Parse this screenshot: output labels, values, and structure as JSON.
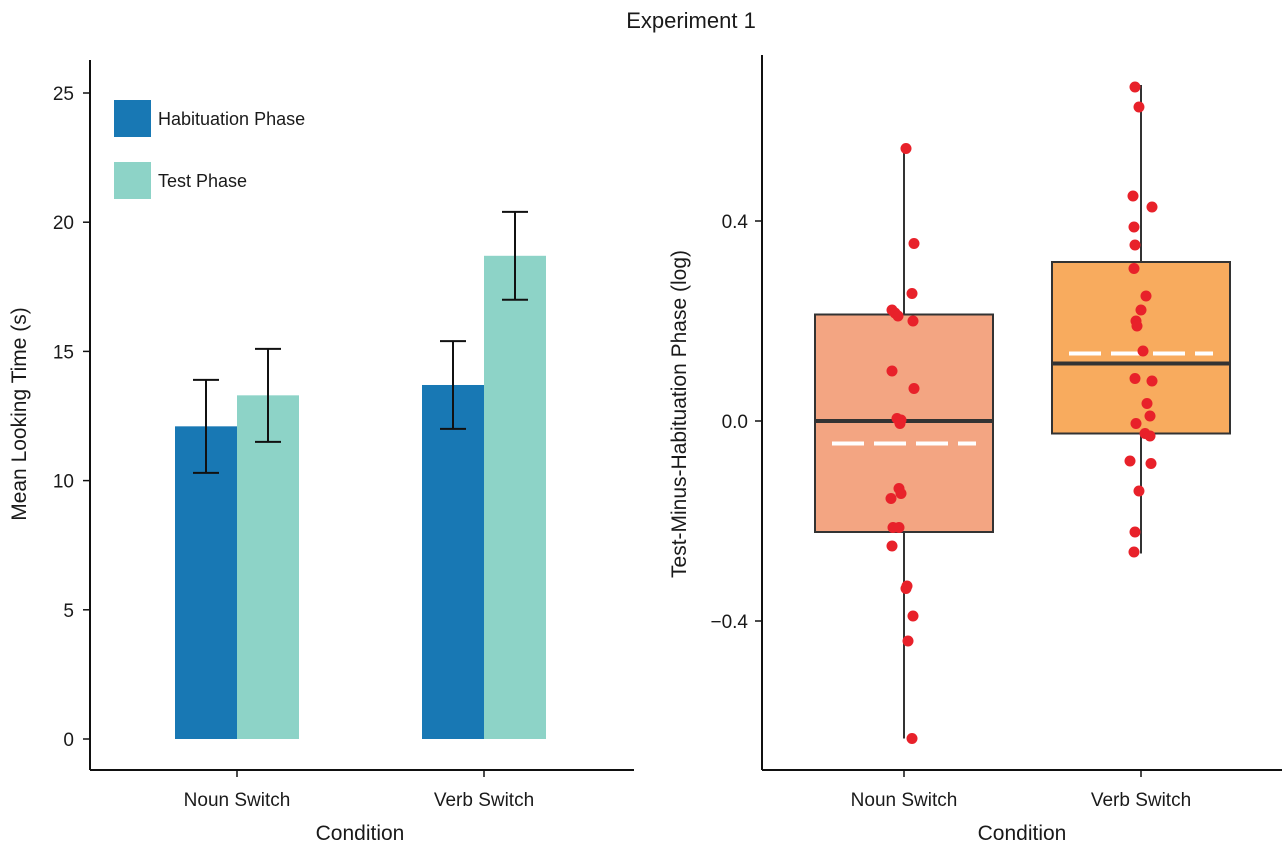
{
  "figure_title": "Experiment 1",
  "chart_data": [
    {
      "type": "bar",
      "title": "",
      "xlabel": "Condition",
      "ylabel": "Mean Looking Time (s)",
      "ylim": [
        0,
        25
      ],
      "yticks": [
        "0",
        "5",
        "10",
        "15",
        "20",
        "25"
      ],
      "categories": [
        "Noun Switch",
        "Verb Switch"
      ],
      "series": [
        {
          "name": "Habituation Phase",
          "color": "#1878b4",
          "values": [
            12.1,
            13.7
          ],
          "error": [
            1.8,
            1.7
          ]
        },
        {
          "name": "Test Phase",
          "color": "#8dd3c7",
          "values": [
            13.3,
            18.7
          ],
          "error": [
            1.8,
            1.7
          ]
        }
      ],
      "legend_position": "top-left",
      "grid": false,
      "error_bars": true
    },
    {
      "type": "box",
      "title": "",
      "xlabel": "Condition",
      "ylabel": "Test-Minus-Habituation Phase (log)",
      "ylim": [
        -0.7,
        0.73
      ],
      "yticks": [
        "0.4",
        "0.0",
        "−0.4"
      ],
      "ytick_values": [
        0.4,
        0.0,
        -0.4
      ],
      "categories": [
        "Noun Switch",
        "Verb Switch"
      ],
      "boxes": [
        {
          "category": "Noun Switch",
          "color": "#f3a582",
          "whisker_low": -0.635,
          "q1": -0.222,
          "median": 0.0,
          "q3": 0.213,
          "whisker_high": 0.55,
          "mean": -0.045
        },
        {
          "category": "Verb Switch",
          "color": "#f8ab5e",
          "whisker_low": -0.265,
          "q1": -0.025,
          "median": 0.115,
          "q3": 0.318,
          "whisker_high": 0.672,
          "mean": 0.135
        }
      ],
      "points_color": "#e8212a",
      "points": [
        {
          "category": "Noun Switch",
          "values": [
            0.545,
            0.355,
            0.255,
            0.222,
            0.216,
            0.21,
            0.2,
            0.1,
            0.065,
            0.005,
            0.002,
            -0.005,
            -0.135,
            -0.145,
            -0.155,
            -0.213,
            -0.213,
            -0.25,
            -0.33,
            -0.335,
            -0.39,
            -0.44,
            -0.635
          ]
        },
        {
          "category": "Verb Switch",
          "values": [
            0.668,
            0.628,
            0.45,
            0.428,
            0.388,
            0.352,
            0.305,
            0.25,
            0.222,
            0.2,
            0.19,
            0.14,
            0.085,
            0.08,
            0.035,
            0.01,
            -0.005,
            -0.025,
            -0.03,
            -0.08,
            -0.085,
            -0.14,
            -0.222,
            -0.262
          ]
        }
      ],
      "mean_line_style": "white-dashed",
      "grid": false
    }
  ]
}
